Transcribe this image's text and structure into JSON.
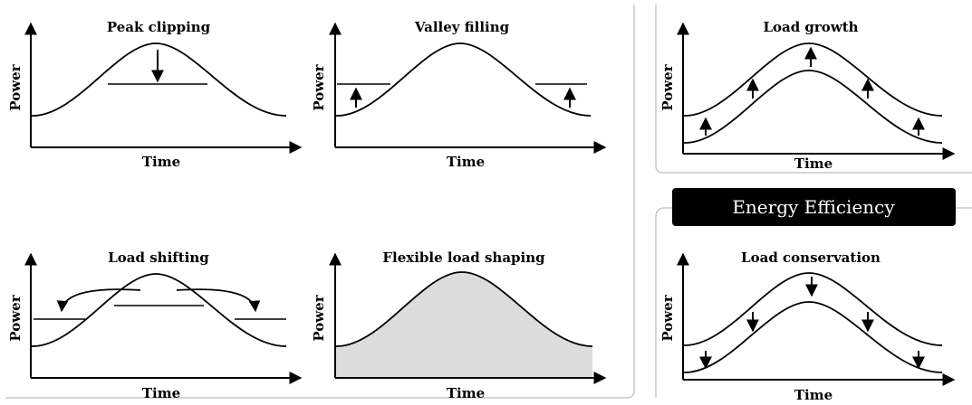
{
  "panels": [
    {
      "id": "peak-clipping",
      "title": "Peak clipping",
      "xlabel": "Time",
      "ylabel": "Power"
    },
    {
      "id": "valley-filling",
      "title": "Valley filling",
      "xlabel": "Time",
      "ylabel": "Power"
    },
    {
      "id": "load-shifting",
      "title": "Load shifting",
      "xlabel": "Time",
      "ylabel": "Power"
    },
    {
      "id": "flexible-load-shaping",
      "title": "Flexible load shaping",
      "xlabel": "Time",
      "ylabel": "Power"
    },
    {
      "id": "load-growth",
      "title": "Load growth",
      "xlabel": "Time",
      "ylabel": "Power"
    },
    {
      "id": "load-conservation",
      "title": "Load conservation",
      "xlabel": "Time",
      "ylabel": "Power"
    }
  ],
  "energy_efficiency_banner": "Energy Efficiency",
  "colors": {
    "line": "#000000",
    "fill": "#dcdcdc",
    "banner_bg": "#000000",
    "banner_text": "#ffffff",
    "frame": "#c8c8c8"
  }
}
